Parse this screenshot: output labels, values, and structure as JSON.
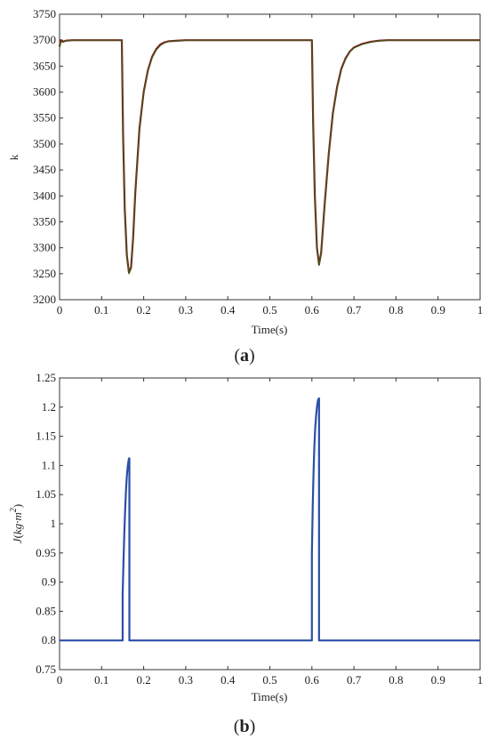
{
  "figure": {
    "panel_a_caption_open": "(",
    "panel_a_caption_letter": "a",
    "panel_a_caption_close": ")",
    "panel_b_caption_open": "(",
    "panel_b_caption_letter": "b",
    "panel_b_caption_close": ")"
  },
  "chart_data": [
    {
      "type": "line",
      "panel": "a",
      "title": "",
      "xlabel": "Time(s)",
      "ylabel": "k",
      "xlim": [
        0,
        1
      ],
      "ylim": [
        3200,
        3750
      ],
      "xticks": [
        0,
        0.1,
        0.2,
        0.3,
        0.4,
        0.5,
        0.6,
        0.7,
        0.8,
        0.9,
        1
      ],
      "xtick_labels": [
        "0",
        "0.1",
        "0.2",
        "0.3",
        "0.4",
        "0.5",
        "0.6",
        "0.7",
        "0.8",
        "0.9",
        "1"
      ],
      "yticks": [
        3200,
        3250,
        3300,
        3350,
        3400,
        3450,
        3500,
        3550,
        3600,
        3650,
        3700,
        3750
      ],
      "ytick_labels": [
        "3200",
        "3250",
        "3300",
        "3350",
        "3400",
        "3450",
        "3500",
        "3550",
        "3600",
        "3650",
        "3700",
        "3750"
      ],
      "grid": false,
      "colors": {
        "main": "#8b1a1a",
        "overlay": "#3d5a1e"
      },
      "series": [
        {
          "color": "#8b1a1a",
          "x": [
            0,
            0.003,
            0.008,
            0.015,
            0.03,
            0.148,
            0.151,
            0.155,
            0.16,
            0.165,
            0.17,
            0.175,
            0.18,
            0.19,
            0.2,
            0.21,
            0.22,
            0.23,
            0.24,
            0.25,
            0.26,
            0.28,
            0.3,
            0.6,
            0.603,
            0.607,
            0.612,
            0.617,
            0.622,
            0.63,
            0.64,
            0.65,
            0.66,
            0.67,
            0.68,
            0.69,
            0.7,
            0.72,
            0.74,
            0.76,
            0.78,
            0.8,
            1.0
          ],
          "y": [
            3688,
            3700,
            3697,
            3699,
            3700,
            3700,
            3520,
            3375,
            3285,
            3252,
            3262,
            3320,
            3405,
            3530,
            3600,
            3642,
            3668,
            3683,
            3692,
            3696,
            3698,
            3699,
            3700,
            3700,
            3540,
            3400,
            3300,
            3268,
            3290,
            3380,
            3480,
            3560,
            3610,
            3645,
            3665,
            3678,
            3686,
            3693,
            3697,
            3699,
            3700,
            3700,
            3700
          ]
        },
        {
          "color": "#3d5a1e",
          "x": [
            0,
            0.003,
            0.008,
            0.015,
            0.03,
            0.148,
            0.151,
            0.155,
            0.16,
            0.165,
            0.17,
            0.175,
            0.18,
            0.19,
            0.2,
            0.21,
            0.22,
            0.23,
            0.24,
            0.25,
            0.26,
            0.28,
            0.3,
            0.6,
            0.603,
            0.607,
            0.612,
            0.617,
            0.622,
            0.63,
            0.64,
            0.65,
            0.66,
            0.67,
            0.68,
            0.69,
            0.7,
            0.72,
            0.74,
            0.76,
            0.78,
            0.8,
            1.0
          ],
          "y": [
            3685,
            3698,
            3696,
            3699,
            3700,
            3700,
            3518,
            3372,
            3283,
            3250,
            3260,
            3318,
            3403,
            3528,
            3598,
            3640,
            3666,
            3681,
            3690,
            3695,
            3698,
            3699,
            3700,
            3700,
            3538,
            3398,
            3298,
            3266,
            3288,
            3378,
            3478,
            3558,
            3608,
            3643,
            3663,
            3677,
            3685,
            3692,
            3696,
            3699,
            3700,
            3700,
            3700
          ]
        }
      ]
    },
    {
      "type": "line",
      "panel": "b",
      "title": "",
      "xlabel": "Time(s)",
      "ylabel": "J(kg·m²)",
      "ylabel_parts": {
        "symbol": "J",
        "open": "(",
        "unit": "kg·m",
        "exponent": "2",
        "close": ")"
      },
      "xlim": [
        0,
        1
      ],
      "ylim": [
        0.75,
        1.25
      ],
      "xticks": [
        0,
        0.1,
        0.2,
        0.3,
        0.4,
        0.5,
        0.6,
        0.7,
        0.8,
        0.9,
        1
      ],
      "xtick_labels": [
        "0",
        "0.1",
        "0.2",
        "0.3",
        "0.4",
        "0.5",
        "0.6",
        "0.7",
        "0.8",
        "0.9",
        "1"
      ],
      "yticks": [
        0.75,
        0.8,
        0.85,
        0.9,
        0.95,
        1,
        1.05,
        1.1,
        1.15,
        1.2,
        1.25
      ],
      "ytick_labels": [
        "0.75",
        "0.8",
        "0.85",
        "0.9",
        "0.95",
        "1",
        "1.05",
        "1.1",
        "1.15",
        "1.2",
        "1.25"
      ],
      "grid": false,
      "colors": {
        "main": "#2b4fa8"
      },
      "series": [
        {
          "color": "#2b4fa8",
          "x": [
            0,
            0.15,
            0.15,
            0.152,
            0.154,
            0.156,
            0.158,
            0.16,
            0.162,
            0.164,
            0.165,
            0.166,
            0.166,
            0.6,
            0.6,
            0.602,
            0.604,
            0.606,
            0.608,
            0.61,
            0.612,
            0.614,
            0.615,
            0.617,
            0.617,
            1.0
          ],
          "y": [
            0.8,
            0.8,
            0.88,
            0.935,
            0.985,
            1.025,
            1.058,
            1.082,
            1.098,
            1.108,
            1.112,
            1.112,
            0.8,
            0.8,
            0.95,
            1.03,
            1.09,
            1.135,
            1.165,
            1.185,
            1.2,
            1.21,
            1.213,
            1.215,
            0.8,
            0.8
          ]
        }
      ]
    }
  ]
}
